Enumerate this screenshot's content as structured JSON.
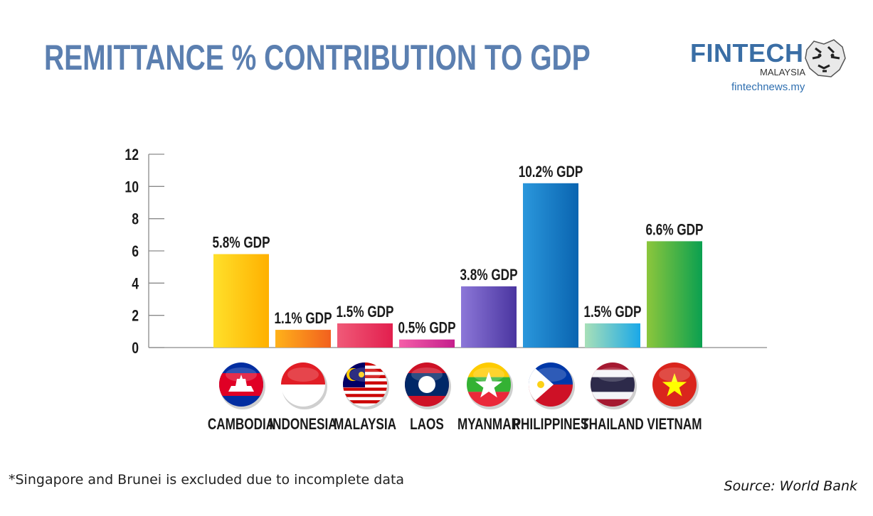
{
  "title": "REMITTANCE % CONTRIBUTION TO GDP",
  "logo": {
    "name": "FINTECH",
    "subtitle": "MALAYSIA",
    "url": "fintechnews.my",
    "icon": "tiger-icon"
  },
  "footnote": "*Singapore and Brunei is excluded due to incomplete data",
  "source": "Source: World Bank",
  "colors": {
    "title": "#5b7fb0",
    "cambodia": [
      "#ffe02a",
      "#ffb000"
    ],
    "indonesia": [
      "#ffb21a",
      "#f2601e"
    ],
    "malaysia": [
      "#f05a78",
      "#e21f4e"
    ],
    "laos": [
      "#f55fa8",
      "#c41e8c"
    ],
    "myanmar": [
      "#8c77d8",
      "#4a35a0"
    ],
    "philippines": [
      "#2a97dc",
      "#0a64b0"
    ],
    "thailand": [
      "#a8e0b8",
      "#1aa8e8"
    ],
    "vietnam": [
      "#8cc63c",
      "#0aa050"
    ]
  },
  "chart_data": {
    "type": "bar",
    "title": "REMITTANCE % CONTRIBUTION TO GDP",
    "categories": [
      "CAMBODIA",
      "INDONESIA",
      "MALAYSIA",
      "LAOS",
      "MYANMAR",
      "PHILIPPINES",
      "THAILAND",
      "VIETNAM"
    ],
    "values": [
      5.8,
      1.1,
      1.5,
      0.5,
      3.8,
      10.2,
      1.5,
      6.6
    ],
    "data_labels": [
      "5.8% GDP",
      "1.1% GDP",
      "1.5% GDP",
      "0.5% GDP",
      "3.8% GDP",
      "10.2% GDP",
      "1.5% GDP",
      "6.6% GDP"
    ],
    "yticks": [
      "0",
      "2",
      "4",
      "6",
      "8",
      "10",
      "12"
    ],
    "ylim": [
      0,
      12
    ],
    "xlabel": "",
    "ylabel": "",
    "grid": false,
    "legend": "none"
  }
}
